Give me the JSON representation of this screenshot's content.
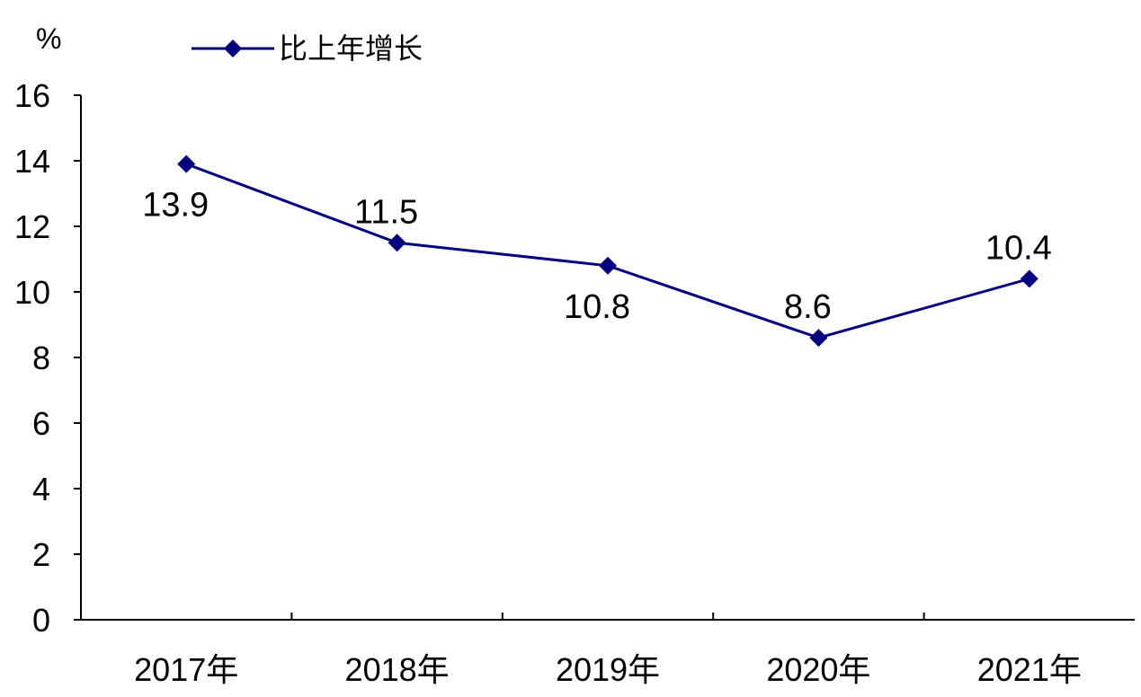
{
  "chart_data": {
    "type": "line",
    "title": "",
    "xlabel": "",
    "ylabel": "%",
    "categories": [
      "2017年",
      "2018年",
      "2019年",
      "2020年",
      "2021年"
    ],
    "series": [
      {
        "name": "比上年增长",
        "values": [
          13.9,
          11.5,
          10.8,
          8.6,
          10.4
        ],
        "data_labels": [
          "13.9",
          "11.5",
          "10.8",
          "8.6",
          "10.4"
        ],
        "data_label_positions": [
          "below",
          "above",
          "below",
          "above",
          "above"
        ],
        "color": "#000080",
        "marker": "diamond"
      }
    ],
    "ylim": [
      0,
      16
    ],
    "y_ticks": [
      "0",
      "2",
      "4",
      "6",
      "8",
      "10",
      "12",
      "14",
      "16"
    ],
    "grid": false,
    "legend_position": "top-left"
  }
}
